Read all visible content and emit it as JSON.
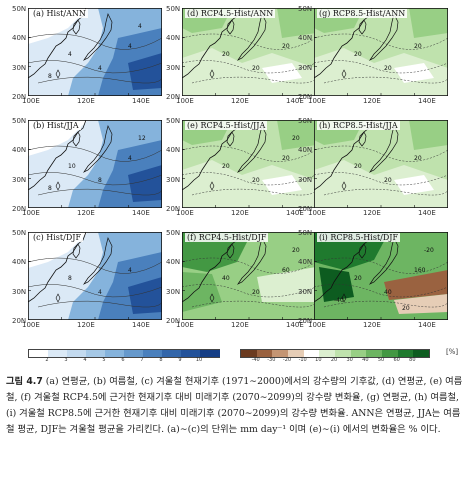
{
  "panels": [
    {
      "id": "a",
      "title": "(a) Hist/ANN",
      "kind": "hist",
      "contours": [
        "4",
        "4",
        "4",
        "4",
        "8"
      ]
    },
    {
      "id": "d",
      "title": "(d) RCP4.5-Hist/ANN",
      "kind": "diff",
      "contours": [
        "20",
        "20",
        "20"
      ]
    },
    {
      "id": "g",
      "title": "(g) RCP8.5-Hist/ANN",
      "kind": "diff",
      "contours": [
        "20",
        "20",
        "20"
      ]
    },
    {
      "id": "b",
      "title": "(b) Hist/JJA",
      "kind": "hist",
      "contours": [
        "4",
        "8",
        "10",
        "12",
        "8"
      ]
    },
    {
      "id": "e",
      "title": "(e) RCP4.5-Hist/JJA",
      "kind": "diff",
      "contours": [
        "20",
        "20",
        "20",
        "20"
      ]
    },
    {
      "id": "h",
      "title": "(h) RCP8.5-Hist/JJA",
      "kind": "diff",
      "contours": [
        "20",
        "20",
        "20"
      ]
    },
    {
      "id": "c",
      "title": "(c) Hist/DJF",
      "kind": "hist",
      "contours": [
        "4",
        "4",
        "8"
      ]
    },
    {
      "id": "f",
      "title": "(f) RCP4.5-Hist/DJF",
      "kind": "diffstrong",
      "contours": [
        "60",
        "20",
        "40",
        "20"
      ]
    },
    {
      "id": "i",
      "title": "(i) RCP8.5-Hist/DJF",
      "kind": "diffneg",
      "contours": [
        "160",
        "40",
        "20",
        "-20",
        "-40",
        "20"
      ]
    }
  ],
  "axes": {
    "lat_ticks": [
      "50N",
      "40N",
      "30N",
      "20N"
    ],
    "lon_ticks": [
      "100E",
      "120E",
      "140E"
    ]
  },
  "colorbar_left": {
    "ticks": [
      "2",
      "3",
      "4",
      "5",
      "6",
      "7",
      "8",
      "9",
      "10"
    ],
    "colors": [
      "#ffffff",
      "#dbe9f6",
      "#c3daef",
      "#a5c8e6",
      "#85b3dc",
      "#6699cc",
      "#4a80bd",
      "#3366aa",
      "#23529a",
      "#153e85"
    ]
  },
  "colorbar_right": {
    "ticks": [
      "-40",
      "-30",
      "-20",
      "-10",
      "10",
      "20",
      "30",
      "40",
      "50",
      "60",
      "80"
    ],
    "colors": [
      "#6b3a1f",
      "#9a6240",
      "#c49573",
      "#e6cdb6",
      "#ffffff",
      "#dcefd0",
      "#bfe2ad",
      "#98cf85",
      "#6db562",
      "#439843",
      "#1f7a2e",
      "#0d5c20"
    ],
    "unit": "[%]"
  },
  "caption": {
    "label": "그림 4.7",
    "text": " (a) 연평균, (b) 여름철, (c) 겨울철 현재기후 (1971∼2000)에서의 강수량의 기후값, (d) 연평균, (e) 여름철, (f) 겨울철 RCP4.5에 근거한 현재기후 대비 미래기후 (2070∼2099)의 강수량 변화율, (g) 연평균, (h) 여름철, (i) 겨울철 RCP8.5에 근거한 현재기후 대비 미래기후 (2070∼2099)의 강수량 변화율. ANN은 연평균, JJA는 여름철 평균, DJF는 겨울철 평균을 가리킨다. (a)∼(c)의 단위는 mm day⁻¹ 이며 (e)∼(i) 에서의 변화율은 % 이다."
  }
}
